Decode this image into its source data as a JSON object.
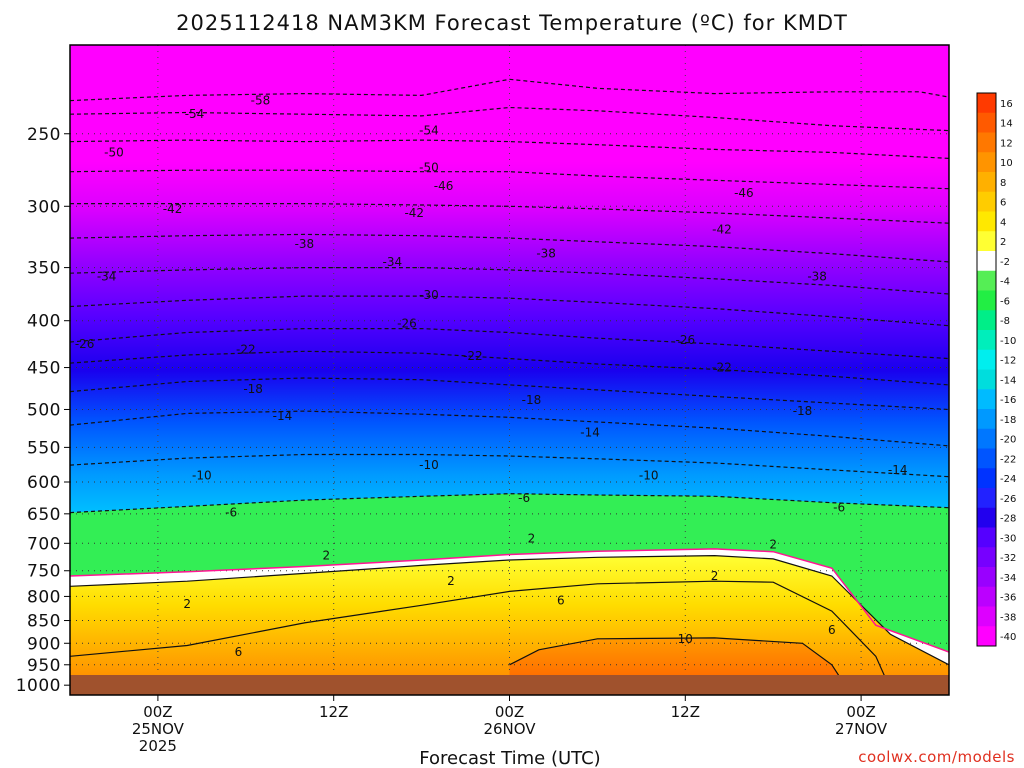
{
  "chart_data": {
    "type": "heatmap",
    "title": "2025112418 NAM3KM Forecast Temperature (ºC) for KMDT",
    "xlabel": "Forecast Time (UTC)",
    "ylabel": "",
    "credit": "coolwx.com/models",
    "y_axis": {
      "unit": "hPa",
      "range": [
        1025,
        200
      ],
      "ticks": [
        1000,
        950,
        900,
        850,
        800,
        750,
        700,
        650,
        600,
        550,
        500,
        450,
        400,
        350,
        300,
        250
      ]
    },
    "x_axis": {
      "unit": "hours since 2025-11-24 18Z",
      "range": [
        0,
        60
      ],
      "ticks": [
        {
          "hour": 6,
          "lines": [
            "00Z",
            "25NOV",
            "2025"
          ]
        },
        {
          "hour": 18,
          "lines": [
            "12Z"
          ]
        },
        {
          "hour": 30,
          "lines": [
            "00Z",
            "26NOV"
          ]
        },
        {
          "hour": 42,
          "lines": [
            "12Z"
          ]
        },
        {
          "hour": 54,
          "lines": [
            "00Z",
            "27NOV"
          ]
        }
      ]
    },
    "colorbar": {
      "labels": [
        "16",
        "14",
        "12",
        "10",
        "8",
        "6",
        "4",
        "2",
        "-2",
        "-4",
        "-6",
        "-8",
        "-10",
        "-12",
        "-14",
        "-16",
        "-18",
        "-20",
        "-22",
        "-24",
        "-26",
        "-28",
        "-30",
        "-32",
        "-34",
        "-36",
        "-38",
        "-40"
      ],
      "colors": [
        "#ff3a00",
        "#ff5a00",
        "#ff7800",
        "#ff9400",
        "#ffb000",
        "#ffcc00",
        "#ffe800",
        "#ffff33",
        "#ffffff",
        "#55ee55",
        "#22ee44",
        "#00ee88",
        "#00eebb",
        "#00eeee",
        "#00dddd",
        "#00bbff",
        "#0099ff",
        "#0077ff",
        "#0055ff",
        "#0033ff",
        "#2222ff",
        "#2200ee",
        "#5500ff",
        "#7700ff",
        "#9900ff",
        "#bb00ff",
        "#dd00ff",
        "#ff00ff"
      ]
    },
    "isotherms": [
      {
        "temp": -58,
        "points": [
          [
            0,
            230
          ],
          [
            8,
            227
          ],
          [
            16,
            226
          ],
          [
            24,
            227
          ],
          [
            30,
            218
          ],
          [
            36,
            223
          ],
          [
            44,
            226
          ],
          [
            52,
            225
          ],
          [
            58,
            225
          ],
          [
            60,
            228
          ]
        ]
      },
      {
        "temp": -54,
        "points": [
          [
            0,
            238
          ],
          [
            8,
            237
          ],
          [
            16,
            238
          ],
          [
            24,
            239
          ],
          [
            30,
            234
          ],
          [
            36,
            236
          ],
          [
            44,
            240
          ],
          [
            52,
            245
          ],
          [
            60,
            248
          ]
        ]
      },
      {
        "temp": -50,
        "points": [
          [
            0,
            255
          ],
          [
            8,
            254
          ],
          [
            16,
            255
          ],
          [
            24,
            254
          ],
          [
            30,
            255
          ],
          [
            36,
            257
          ],
          [
            44,
            260
          ],
          [
            52,
            262
          ],
          [
            60,
            266
          ]
        ]
      },
      {
        "temp": -46,
        "points": [
          [
            0,
            275
          ],
          [
            8,
            274
          ],
          [
            16,
            274
          ],
          [
            24,
            275
          ],
          [
            30,
            275
          ],
          [
            36,
            278
          ],
          [
            44,
            281
          ],
          [
            52,
            284
          ],
          [
            60,
            287
          ]
        ]
      },
      {
        "temp": -42,
        "points": [
          [
            0,
            298
          ],
          [
            8,
            298
          ],
          [
            16,
            298
          ],
          [
            24,
            299
          ],
          [
            30,
            300
          ],
          [
            36,
            302
          ],
          [
            44,
            305
          ],
          [
            52,
            309
          ],
          [
            60,
            313
          ]
        ]
      },
      {
        "temp": -38,
        "points": [
          [
            0,
            325
          ],
          [
            8,
            323
          ],
          [
            16,
            322
          ],
          [
            24,
            323
          ],
          [
            30,
            325
          ],
          [
            36,
            328
          ],
          [
            44,
            332
          ],
          [
            52,
            338
          ],
          [
            60,
            345
          ]
        ]
      },
      {
        "temp": -34,
        "points": [
          [
            0,
            355
          ],
          [
            8,
            352
          ],
          [
            16,
            350
          ],
          [
            24,
            350
          ],
          [
            30,
            352
          ],
          [
            36,
            355
          ],
          [
            44,
            360
          ],
          [
            52,
            366
          ],
          [
            60,
            374
          ]
        ]
      },
      {
        "temp": -30,
        "points": [
          [
            0,
            386
          ],
          [
            8,
            380
          ],
          [
            16,
            376
          ],
          [
            24,
            376
          ],
          [
            30,
            378
          ],
          [
            36,
            382
          ],
          [
            44,
            388
          ],
          [
            52,
            396
          ],
          [
            60,
            405
          ]
        ]
      },
      {
        "temp": -26,
        "points": [
          [
            0,
            422
          ],
          [
            8,
            412
          ],
          [
            16,
            408
          ],
          [
            24,
            408
          ],
          [
            30,
            412
          ],
          [
            36,
            418
          ],
          [
            44,
            424
          ],
          [
            52,
            432
          ],
          [
            60,
            440
          ]
        ]
      },
      {
        "temp": -22,
        "points": [
          [
            0,
            445
          ],
          [
            8,
            436
          ],
          [
            16,
            432
          ],
          [
            24,
            434
          ],
          [
            30,
            440
          ],
          [
            36,
            446
          ],
          [
            44,
            452
          ],
          [
            52,
            460
          ],
          [
            60,
            470
          ]
        ]
      },
      {
        "temp": -18,
        "points": [
          [
            0,
            478
          ],
          [
            8,
            466
          ],
          [
            16,
            462
          ],
          [
            24,
            464
          ],
          [
            30,
            470
          ],
          [
            36,
            476
          ],
          [
            44,
            484
          ],
          [
            52,
            492
          ],
          [
            60,
            500
          ]
        ]
      },
      {
        "temp": -14,
        "points": [
          [
            0,
            520
          ],
          [
            8,
            505
          ],
          [
            16,
            502
          ],
          [
            24,
            506
          ],
          [
            30,
            510
          ],
          [
            36,
            516
          ],
          [
            44,
            524
          ],
          [
            52,
            535
          ],
          [
            60,
            548
          ]
        ]
      },
      {
        "temp": -10,
        "points": [
          [
            0,
            575
          ],
          [
            8,
            565
          ],
          [
            16,
            560
          ],
          [
            24,
            560
          ],
          [
            30,
            562
          ],
          [
            36,
            566
          ],
          [
            44,
            572
          ],
          [
            52,
            582
          ],
          [
            60,
            592
          ]
        ]
      },
      {
        "temp": -6,
        "points": [
          [
            0,
            648
          ],
          [
            8,
            638
          ],
          [
            16,
            628
          ],
          [
            24,
            622
          ],
          [
            30,
            618
          ],
          [
            36,
            620
          ],
          [
            44,
            622
          ],
          [
            52,
            632
          ],
          [
            60,
            640
          ]
        ]
      },
      {
        "temp": 2,
        "points": [
          [
            0,
            780
          ],
          [
            8,
            770
          ],
          [
            16,
            755
          ],
          [
            24,
            740
          ],
          [
            30,
            730
          ],
          [
            36,
            725
          ],
          [
            44,
            722
          ],
          [
            48,
            728
          ],
          [
            52,
            760
          ],
          [
            56,
            880
          ],
          [
            60,
            950
          ]
        ]
      },
      {
        "temp": 6,
        "points": [
          [
            0,
            930
          ],
          [
            8,
            905
          ],
          [
            16,
            855
          ],
          [
            24,
            818
          ],
          [
            30,
            790
          ],
          [
            36,
            775
          ],
          [
            44,
            770
          ],
          [
            48,
            772
          ],
          [
            52,
            830
          ],
          [
            55,
            930
          ],
          [
            56,
            1010
          ]
        ]
      },
      {
        "temp": 10,
        "points": [
          [
            30,
            950
          ],
          [
            32,
            915
          ],
          [
            36,
            890
          ],
          [
            44,
            888
          ],
          [
            50,
            900
          ],
          [
            52,
            950
          ],
          [
            53,
            1005
          ]
        ]
      }
    ],
    "freezing_line": {
      "temp": 0,
      "points": [
        [
          0,
          760
        ],
        [
          8,
          752
        ],
        [
          16,
          742
        ],
        [
          24,
          730
        ],
        [
          30,
          720
        ],
        [
          36,
          714
        ],
        [
          44,
          710
        ],
        [
          48,
          715
        ],
        [
          52,
          745
        ],
        [
          55,
          860
        ],
        [
          60,
          920
        ]
      ]
    },
    "contour_labels": [
      {
        "text": "-58",
        "hour": 13,
        "p": 230
      },
      {
        "text": "-54",
        "hour": 8.5,
        "p": 238
      },
      {
        "text": "-54",
        "hour": 24.5,
        "p": 248
      },
      {
        "text": "-50",
        "hour": 3,
        "p": 262
      },
      {
        "text": "-50",
        "hour": 24.5,
        "p": 272
      },
      {
        "text": "-46",
        "hour": 25.5,
        "p": 285
      },
      {
        "text": "-46",
        "hour": 46,
        "p": 290
      },
      {
        "text": "-42",
        "hour": 7,
        "p": 302
      },
      {
        "text": "-42",
        "hour": 23.5,
        "p": 305
      },
      {
        "text": "-42",
        "hour": 44.5,
        "p": 318
      },
      {
        "text": "-38",
        "hour": 16,
        "p": 330
      },
      {
        "text": "-38",
        "hour": 32.5,
        "p": 338
      },
      {
        "text": "-38",
        "hour": 51,
        "p": 358
      },
      {
        "text": "-34",
        "hour": 2.5,
        "p": 358
      },
      {
        "text": "-34",
        "hour": 22,
        "p": 345
      },
      {
        "text": "-30",
        "hour": 24.5,
        "p": 375
      },
      {
        "text": "-26",
        "hour": 1,
        "p": 424
      },
      {
        "text": "-26",
        "hour": 23,
        "p": 403
      },
      {
        "text": "-26",
        "hour": 42,
        "p": 420
      },
      {
        "text": "-22",
        "hour": 12,
        "p": 430
      },
      {
        "text": "-22",
        "hour": 27.5,
        "p": 437
      },
      {
        "text": "-22",
        "hour": 44.5,
        "p": 450
      },
      {
        "text": "-18",
        "hour": 12.5,
        "p": 475
      },
      {
        "text": "-18",
        "hour": 31.5,
        "p": 488
      },
      {
        "text": "-18",
        "hour": 50,
        "p": 502
      },
      {
        "text": "-14",
        "hour": 14.5,
        "p": 508
      },
      {
        "text": "-14",
        "hour": 35.5,
        "p": 530
      },
      {
        "text": "-14",
        "hour": 56.5,
        "p": 582
      },
      {
        "text": "-10",
        "hour": 9,
        "p": 590
      },
      {
        "text": "-10",
        "hour": 24.5,
        "p": 575
      },
      {
        "text": "-10",
        "hour": 39.5,
        "p": 590
      },
      {
        "text": "-6",
        "hour": 11,
        "p": 648
      },
      {
        "text": "-6",
        "hour": 31,
        "p": 625
      },
      {
        "text": "-6",
        "hour": 52.5,
        "p": 640
      },
      {
        "text": "2",
        "hour": 17.5,
        "p": 722
      },
      {
        "text": "2",
        "hour": 31.5,
        "p": 692
      },
      {
        "text": "2",
        "hour": 48,
        "p": 702
      },
      {
        "text": "2",
        "hour": 26,
        "p": 770
      },
      {
        "text": "2",
        "hour": 44,
        "p": 760
      },
      {
        "text": "2",
        "hour": 8,
        "p": 815
      },
      {
        "text": "6",
        "hour": 33.5,
        "p": 808
      },
      {
        "text": "6",
        "hour": 52,
        "p": 870
      },
      {
        "text": "6",
        "hour": 11.5,
        "p": 920
      },
      {
        "text": "10",
        "hour": 42,
        "p": 890
      }
    ]
  }
}
